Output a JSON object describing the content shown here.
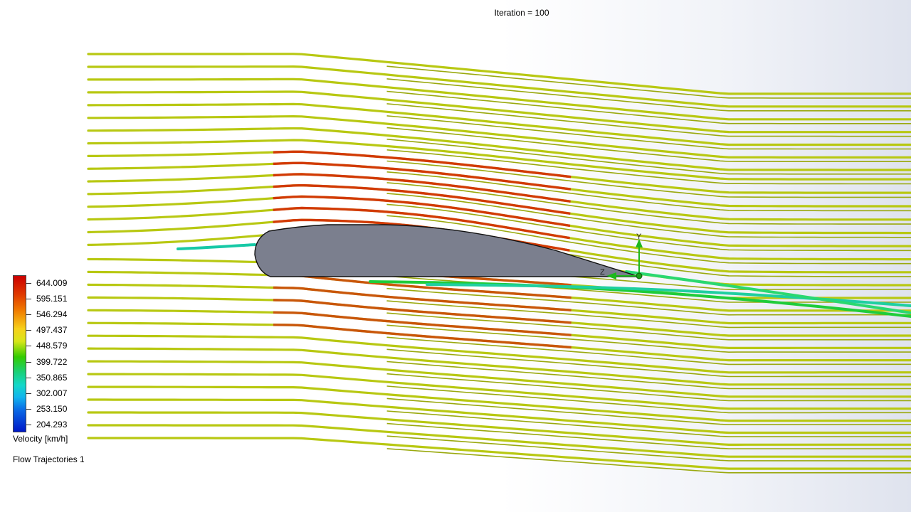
{
  "header": {
    "iteration_text": "Iteration = 100"
  },
  "legend": {
    "title": "Velocity [km/h]",
    "values": [
      "644.009",
      "595.151",
      "546.294",
      "497.437",
      "448.579",
      "399.722",
      "350.865",
      "302.007",
      "253.150",
      "204.293"
    ],
    "gradient_colors": [
      "#cc0000",
      "#e03a00",
      "#f07a00",
      "#f7d11a",
      "#d8e61a",
      "#33cc00",
      "#1ad07a",
      "#14d8c8",
      "#12b4ee",
      "#0a6ae6",
      "#0018c8"
    ]
  },
  "plot": {
    "name": "Flow Trajectories 1",
    "airfoil_fill": "#7b7f8e",
    "streamline_base_color": "#b8c812",
    "axis_labels": {
      "y": "Y",
      "z": "Z"
    }
  }
}
